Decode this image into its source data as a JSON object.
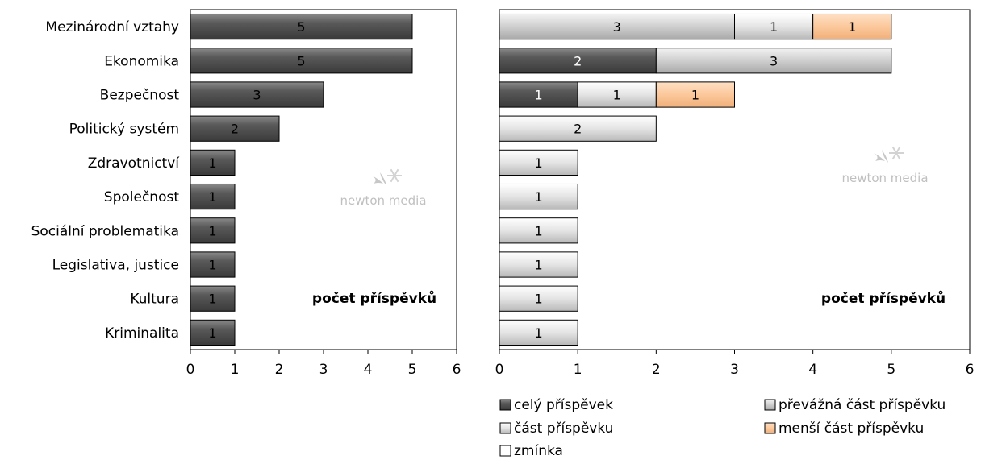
{
  "watermark": {
    "text": "newton media"
  },
  "chart_data": [
    {
      "type": "bar",
      "orientation": "horizontal",
      "annotation": "počet příspěvků",
      "categories": [
        "Mezinárodní vztahy",
        "Ekonomika",
        "Bezpečnost",
        "Politický systém",
        "Zdravotnictví",
        "Společnost",
        "Sociální problematika",
        "Legislativa, justice",
        "Kultura",
        "Kriminalita"
      ],
      "values": [
        5,
        5,
        3,
        2,
        1,
        1,
        1,
        1,
        1,
        1
      ],
      "xlim": [
        0,
        6
      ],
      "xticks": [
        0,
        1,
        2,
        3,
        4,
        5,
        6
      ],
      "color": "#4d4d4d",
      "grid": false,
      "data_labels": true
    },
    {
      "type": "bar",
      "orientation": "horizontal",
      "stacked": true,
      "annotation": "počet příspěvků",
      "categories": [
        "Mezinárodní vztahy",
        "Ekonomika",
        "Bezpečnost",
        "Politický systém",
        "Zdravotnictví",
        "Společnost",
        "Sociální problematika",
        "Legislativa, justice",
        "Kultura",
        "Kriminalita"
      ],
      "series": [
        {
          "name": "celý příspěvek",
          "color": "#4d4d4d",
          "values": [
            0,
            2,
            1,
            0,
            0,
            0,
            0,
            0,
            0,
            0
          ]
        },
        {
          "name": "převážná část příspěvku",
          "color": "#bdbdbd",
          "values": [
            3,
            3,
            0,
            0,
            0,
            0,
            0,
            0,
            0,
            0
          ]
        },
        {
          "name": "část příspěvku",
          "color": "#c8c8c8",
          "values": [
            1,
            0,
            1,
            2,
            1,
            1,
            1,
            1,
            1,
            1
          ]
        },
        {
          "name": "menší část příspěvku",
          "color": "#fcc89b",
          "values": [
            1,
            0,
            1,
            0,
            0,
            0,
            0,
            0,
            0,
            0
          ]
        },
        {
          "name": "zmínka",
          "color": "#ffffff",
          "values": [
            0,
            0,
            0,
            0,
            0,
            0,
            0,
            0,
            0,
            0
          ]
        }
      ],
      "xlim": [
        0,
        6
      ],
      "xticks": [
        0,
        1,
        2,
        3,
        4,
        5,
        6
      ],
      "grid": false,
      "data_labels": true,
      "legend_position": "bottom"
    }
  ]
}
